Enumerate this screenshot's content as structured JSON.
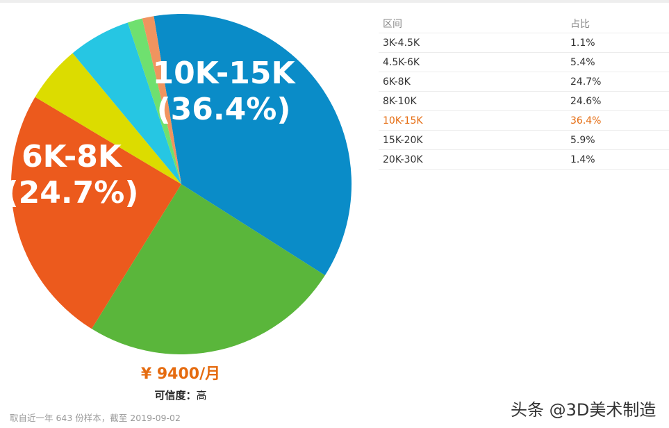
{
  "chart_data": {
    "type": "pie",
    "categories": [
      "3K-4.5K",
      "4.5K-6K",
      "6K-8K",
      "8K-10K",
      "10K-15K",
      "15K-20K",
      "20K-30K"
    ],
    "values": [
      1.1,
      5.4,
      24.7,
      24.6,
      36.4,
      5.9,
      1.4
    ],
    "value_labels": [
      "1.1%",
      "5.4%",
      "24.7%",
      "24.6%",
      "36.4%",
      "5.9%",
      "1.4%"
    ],
    "colors": [
      "#f0945f",
      "#dcdc00",
      "#5ab63b",
      "#ec5a1d",
      "#0a8cc8",
      "#26c6e3",
      "#6fe06f"
    ],
    "draw_order": [
      4,
      2,
      3,
      1,
      5,
      6,
      0
    ],
    "labeled_slices": [
      {
        "name": "10K-15K",
        "pct": "(36.4%)"
      },
      {
        "name": "6K-8K",
        "pct": "(24.7%)"
      }
    ]
  },
  "table": {
    "header": {
      "range": "区间",
      "ratio": "占比"
    },
    "rows": [
      {
        "range": "3K-4.5K",
        "ratio": "1.1%"
      },
      {
        "range": "4.5K-6K",
        "ratio": "5.4%"
      },
      {
        "range": "6K-8K",
        "ratio": "24.7%"
      },
      {
        "range": "8K-10K",
        "ratio": "24.6%"
      },
      {
        "range": "10K-15K",
        "ratio": "36.4%",
        "highlight": true
      },
      {
        "range": "15K-20K",
        "ratio": "5.9%"
      },
      {
        "range": "20K-30K",
        "ratio": "1.4%"
      }
    ]
  },
  "summary": {
    "average": "¥ 9400/月",
    "credibility_key": "可信度：",
    "credibility_value": "高"
  },
  "footnote": "取自近一年 643 份样本，截至 2019-09-02",
  "watermark": "头条 @3D美术制造"
}
